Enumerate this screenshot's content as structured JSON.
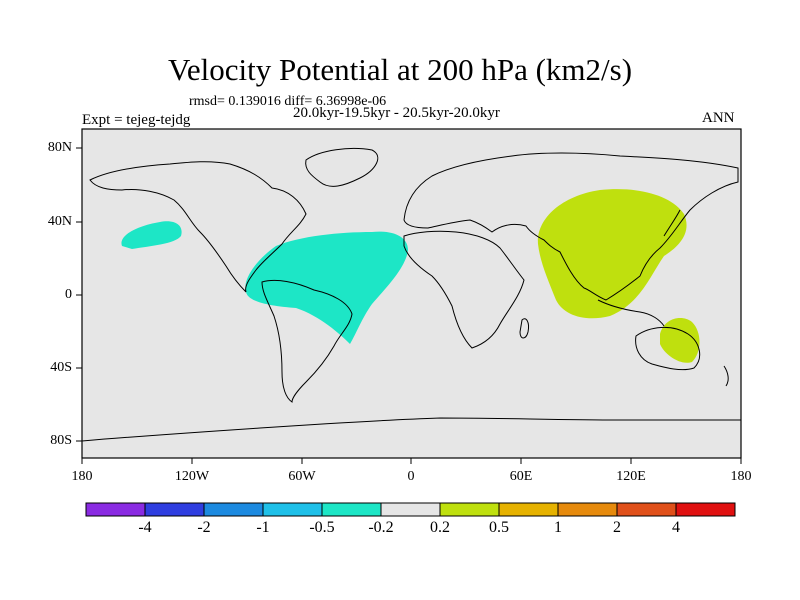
{
  "title": "Velocity Potential at 200 hPa (km2/s)",
  "stats": "rmsd= 0.139016 diff= 6.36998e-06",
  "period": "20.0kyr-19.5kyr - 20.5kyr-20.0kyr",
  "experiment": "Expt = tejeg-tejdg",
  "season": "ANN",
  "lat_labels": [
    "80N",
    "40N",
    "0",
    "40S",
    "80S"
  ],
  "lon_labels": [
    "180",
    "120W",
    "60W",
    "0",
    "60E",
    "120E",
    "180"
  ],
  "colorbar": {
    "colors": [
      "#8a2be2",
      "#2f3ee0",
      "#1c8ae0",
      "#1fc0e8",
      "#1de6c6",
      "#e6e6e6",
      "#bfe00e",
      "#e6b200",
      "#e68a0c",
      "#e0501a",
      "#e01010"
    ],
    "labels": [
      "-4",
      "-2",
      "-1",
      "-0.5",
      "-0.2",
      "0.2",
      "0.5",
      "1",
      "2",
      "4"
    ]
  },
  "map_colors": {
    "ocean": "#e6e6e6",
    "negative": "#1de6c6",
    "positive": "#bfe00e",
    "coast": "#000000"
  }
}
